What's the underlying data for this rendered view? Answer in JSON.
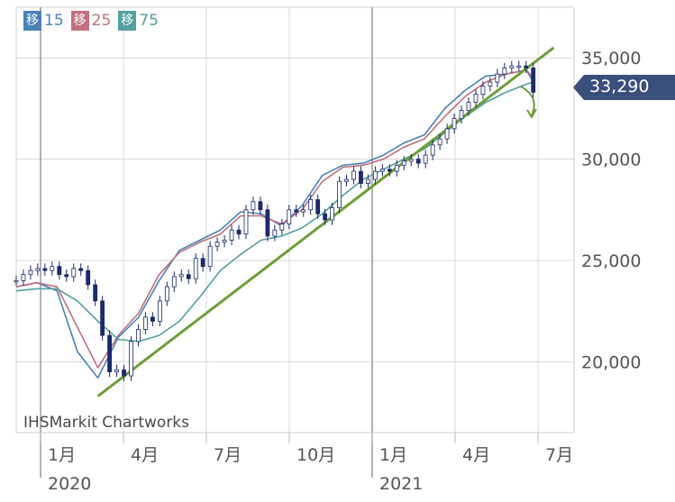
{
  "legend": [
    {
      "label": "移",
      "period": "15",
      "color": "#4a82b8"
    },
    {
      "label": "移",
      "period": "25",
      "color": "#c0707e"
    },
    {
      "label": "移",
      "period": "75",
      "color": "#52a0a0"
    }
  ],
  "watermark": "IHSMarkit Chartworks",
  "current_price": "33,290",
  "colors": {
    "trendline": "#6f9e3a",
    "candle_up": "#ffffff",
    "candle_down": "#1a2a6a",
    "price_tag": "#3a4f7a",
    "grid": "#d8d8d8"
  },
  "chart_data": {
    "type": "line",
    "y_ticks": [
      "35,000",
      "30,000",
      "25,000",
      "20,000"
    ],
    "y_tick_values": [
      35000,
      30000,
      25000,
      20000
    ],
    "ylim": [
      16500,
      37500
    ],
    "x_ticks": [
      {
        "label": "1月",
        "year": "2020"
      },
      {
        "label": "4月",
        "year": ""
      },
      {
        "label": "7月",
        "year": ""
      },
      {
        "label": "10月",
        "year": ""
      },
      {
        "label": "1月",
        "year": "2021"
      },
      {
        "label": "4月",
        "year": ""
      },
      {
        "label": "7月",
        "year": ""
      }
    ],
    "series": [
      {
        "name": "移15",
        "x": [
          0,
          15,
          30,
          45,
          60,
          75,
          90,
          105,
          120,
          135,
          150,
          165,
          180,
          195,
          210,
          225,
          240,
          255,
          270,
          285,
          300,
          315,
          330,
          345,
          360,
          375,
          380
        ],
        "values": [
          23700,
          23900,
          23500,
          20500,
          19200,
          21200,
          22200,
          24000,
          25500,
          26000,
          26500,
          27400,
          27300,
          26700,
          27700,
          29200,
          29700,
          29800,
          30200,
          30800,
          31200,
          32500,
          33400,
          34100,
          34200,
          34400,
          33800
        ]
      },
      {
        "name": "移25",
        "x": [
          0,
          15,
          30,
          45,
          60,
          75,
          90,
          105,
          120,
          135,
          150,
          165,
          180,
          195,
          210,
          225,
          240,
          255,
          270,
          285,
          300,
          315,
          330,
          345,
          360,
          375,
          380
        ],
        "values": [
          23700,
          23900,
          23700,
          21700,
          19700,
          21300,
          22400,
          24300,
          25400,
          25900,
          26300,
          27200,
          27200,
          26800,
          27500,
          28900,
          29600,
          29700,
          30000,
          30600,
          31000,
          32100,
          33100,
          33800,
          34200,
          34400,
          34000
        ]
      },
      {
        "name": "移75",
        "x": [
          0,
          15,
          30,
          45,
          60,
          75,
          90,
          105,
          120,
          135,
          150,
          165,
          180,
          195,
          210,
          225,
          240,
          255,
          270,
          285,
          300,
          315,
          330,
          345,
          360,
          375,
          380
        ],
        "values": [
          23500,
          23600,
          23600,
          23000,
          22000,
          21100,
          21000,
          21300,
          22000,
          23200,
          24500,
          25300,
          26000,
          26200,
          26600,
          27300,
          28200,
          29000,
          29500,
          30000,
          30500,
          31300,
          32100,
          32800,
          33300,
          33700,
          33800
        ]
      },
      {
        "name": "",
        "x": [
          60,
          395
        ],
        "values": [
          18300,
          35500
        ]
      }
    ],
    "candles": [
      24000,
      24300,
      24500,
      24600,
      24500,
      24700,
      24300,
      24200,
      24600,
      24500,
      23800,
      23000,
      21300,
      19500,
      19600,
      19300,
      21000,
      21600,
      22200,
      22000,
      23000,
      23700,
      24200,
      24300,
      24100,
      25100,
      24700,
      25700,
      25900,
      26000,
      26500,
      26300,
      27500,
      27900,
      27500,
      26200,
      26500,
      26800,
      27500,
      27400,
      27500,
      28000,
      27300,
      27000,
      27600,
      28900,
      29000,
      29400,
      28800,
      29000,
      29400,
      29500,
      29400,
      29700,
      29900,
      30000,
      29800,
      30200,
      30700,
      31000,
      31500,
      32000,
      32400,
      32800,
      33200,
      33600,
      33800,
      34200,
      34500,
      34600,
      34600,
      34500,
      33300
    ],
    "annotation": "trendline and downward arrow near latest price"
  }
}
